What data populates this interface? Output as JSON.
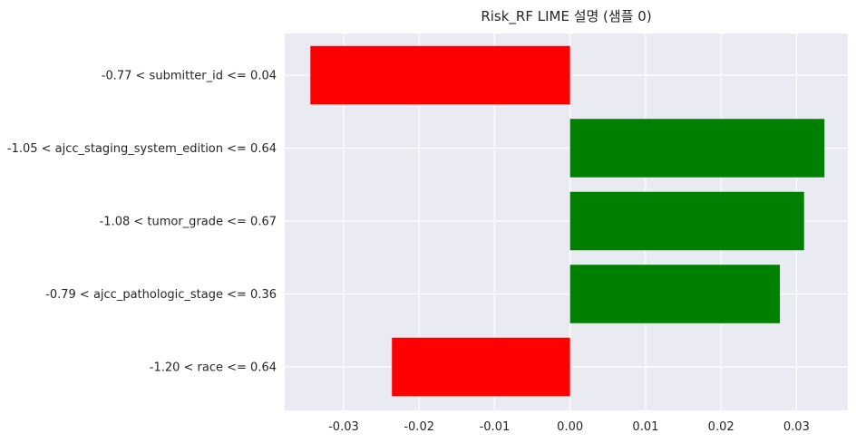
{
  "chart_data": {
    "type": "bar",
    "orientation": "horizontal",
    "title": "Risk_RF LIME 설명 (샘플 0)",
    "xlabel": "",
    "ylabel": "",
    "grid": true,
    "xlim": [
      -0.0378,
      0.0368
    ],
    "xticks": [
      -0.03,
      -0.02,
      -0.01,
      0.0,
      0.01,
      0.02,
      0.03
    ],
    "xtick_labels": [
      "-0.03",
      "-0.02",
      "-0.01",
      "0.00",
      "0.01",
      "0.02",
      "0.03"
    ],
    "categories": [
      "-0.77 < submitter_id <= 0.04",
      "-1.05 < ajcc_staging_system_edition <= 0.64",
      "-1.08 < tumor_grade <= 0.67",
      "-0.79 < ajcc_pathologic_stage <= 0.36",
      "-1.20 < race <= 0.64"
    ],
    "values": [
      -0.0344,
      0.0337,
      0.031,
      0.0278,
      -0.0236
    ],
    "colors": {
      "positive": "#008000",
      "negative": "#ff0000",
      "background": "#eaeaf2",
      "grid": "#ffffff"
    }
  }
}
